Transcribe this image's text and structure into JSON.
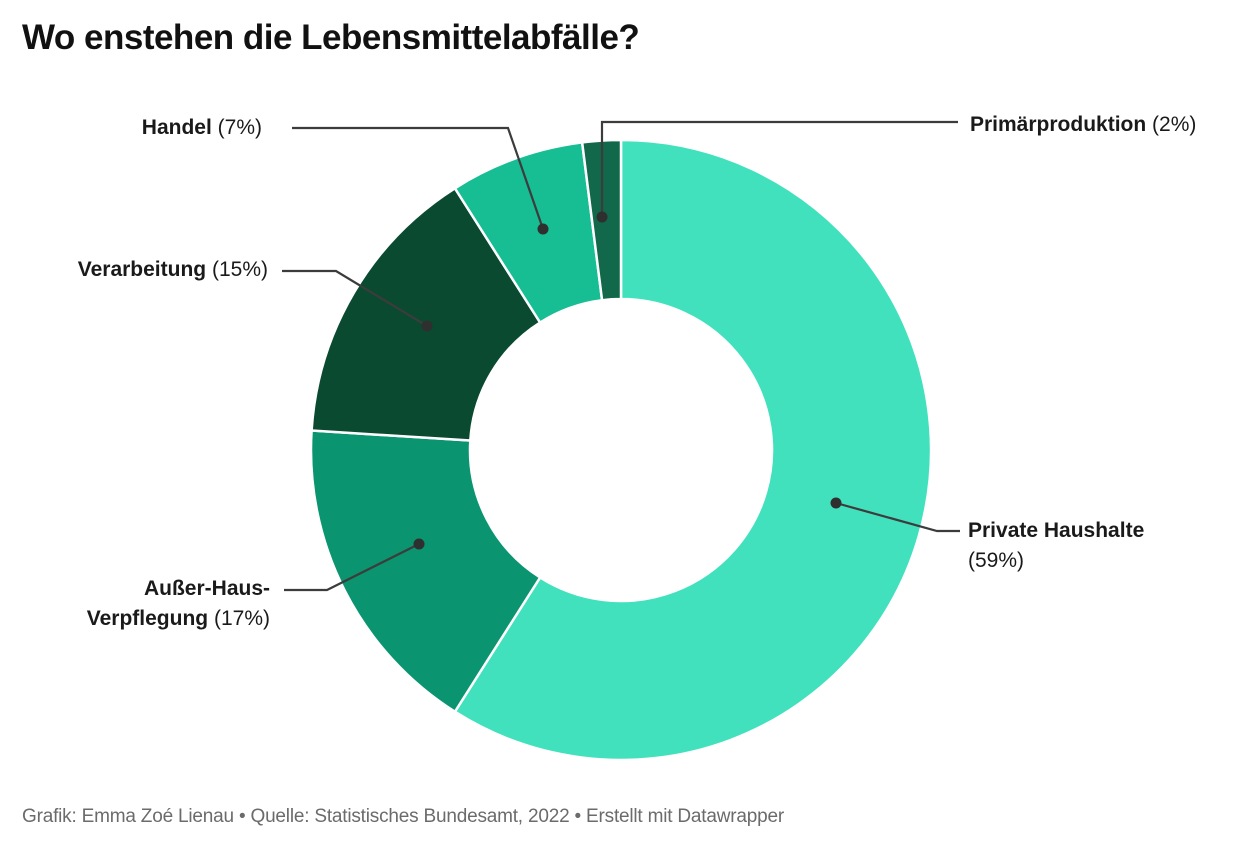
{
  "title": "Wo enstehen die Lebensmittelabfälle?",
  "footer": {
    "text": "Grafik: Emma Zoé Lienau • Quelle: Statistisches Bundesamt, 2022 • Erstellt mit Datawrapper"
  },
  "chart_data": {
    "type": "pie",
    "subtype": "donut",
    "title": "Wo enstehen die Lebensmittelabfälle?",
    "unit": "%",
    "categories": [
      "Private Haushalte",
      "Außer-Haus-Verpflegung",
      "Verarbeitung",
      "Handel",
      "Primärproduktion"
    ],
    "values": [
      59,
      17,
      15,
      7,
      2
    ],
    "slices": [
      {
        "label": "Private Haushalte",
        "value": 59,
        "pct_label": "(59%)",
        "color": "#42E1BD"
      },
      {
        "label": "Außer-Haus-Verpflegung",
        "value": 17,
        "pct_label": "(17%)",
        "color": "#0A9470"
      },
      {
        "label": "Verarbeitung",
        "value": 15,
        "pct_label": "(15%)",
        "color": "#0A4A30"
      },
      {
        "label": "Handel",
        "value": 7,
        "pct_label": "(7%)",
        "color": "#17BD93"
      },
      {
        "label": "Primärproduktion",
        "value": 2,
        "pct_label": "(2%)",
        "color": "#11684B"
      }
    ],
    "layout_hints": {
      "start_angle_deg": 0,
      "direction": "clockwise",
      "labels": "outside-with-leader-lines",
      "legend": "none",
      "grid": false
    },
    "leader_line_color": "#3C3C3C",
    "leader_dot_color": "#2F2F2F",
    "slice_divider_color": "#FFFFFF",
    "background_color": "#FFFFFF"
  }
}
